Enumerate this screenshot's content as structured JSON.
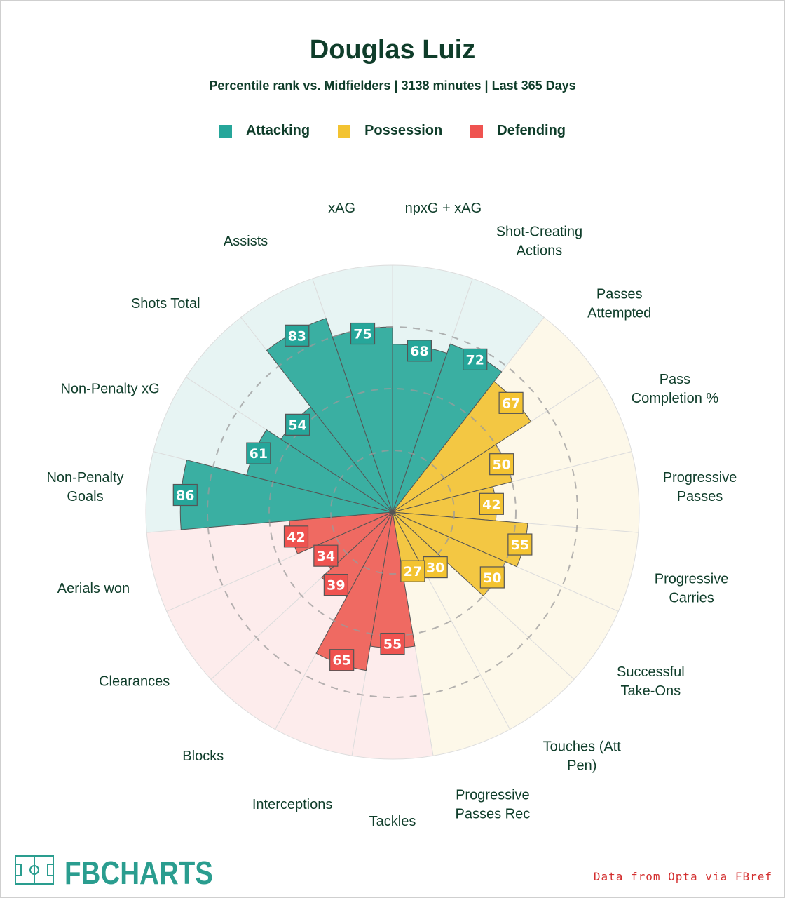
{
  "title": "Douglas Luiz",
  "subtitle": "Percentile rank vs. Midfielders | 3138 minutes | Last 365 Days",
  "legend": [
    {
      "label": "Attacking",
      "color": "#26a69a"
    },
    {
      "label": "Possession",
      "color": "#f3c331"
    },
    {
      "label": "Defending",
      "color": "#ef5350"
    }
  ],
  "colors": {
    "title": "#0f3d2a",
    "attacking_bg": "#e7f4f3",
    "possession_bg": "#fdf8e9",
    "defending_bg": "#fdecec",
    "attacking_bar": "#3aafa2",
    "possession_bar": "#f3c743",
    "defending_bar": "#ef6a62",
    "source_text": "#d32f2f"
  },
  "chart_data": {
    "type": "radar-bar",
    "title": "Douglas Luiz",
    "subtitle": "Percentile rank vs. Midfielders | 3138 minutes | Last 365 Days",
    "rlim": [
      0,
      100
    ],
    "grid_rings": [
      25,
      50,
      75
    ],
    "series": [
      {
        "label": "npxG + xAG",
        "value": 68,
        "group": "Attacking"
      },
      {
        "label": "Shot-Creating\nActions",
        "value": 72,
        "group": "Attacking"
      },
      {
        "label": "Passes\nAttempted",
        "value": 67,
        "group": "Possession"
      },
      {
        "label": "Pass\nCompletion %",
        "value": 50,
        "group": "Possession"
      },
      {
        "label": "Progressive\nPasses",
        "value": 42,
        "group": "Possession"
      },
      {
        "label": "Progressive\nCarries",
        "value": 55,
        "group": "Possession"
      },
      {
        "label": "Successful\nTake-Ons",
        "value": 50,
        "group": "Possession"
      },
      {
        "label": "Touches (Att\nPen)",
        "value": 30,
        "group": "Possession"
      },
      {
        "label": "Progressive\nPasses Rec",
        "value": 27,
        "group": "Possession"
      },
      {
        "label": "Tackles",
        "value": 55,
        "group": "Defending"
      },
      {
        "label": "Interceptions",
        "value": 65,
        "group": "Defending"
      },
      {
        "label": "Blocks",
        "value": 39,
        "group": "Defending"
      },
      {
        "label": "Clearances",
        "value": 34,
        "group": "Defending"
      },
      {
        "label": "Aerials won",
        "value": 42,
        "group": "Defending"
      },
      {
        "label": "Non-Penalty\nGoals",
        "value": 86,
        "group": "Attacking"
      },
      {
        "label": "Non-Penalty xG",
        "value": 61,
        "group": "Attacking"
      },
      {
        "label": "Shots Total",
        "value": 54,
        "group": "Attacking"
      },
      {
        "label": "Assists",
        "value": 83,
        "group": "Attacking"
      },
      {
        "label": "xAG",
        "value": 75,
        "group": "Attacking"
      }
    ]
  },
  "logo": {
    "text": "FBCHARTS",
    "color": "#2a9d8f"
  },
  "source": "Data from Opta via FBref"
}
